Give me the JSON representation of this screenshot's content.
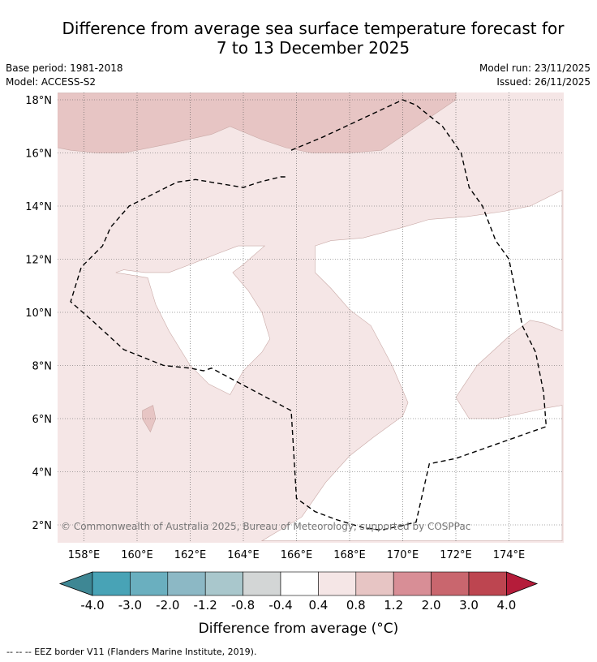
{
  "header": {
    "title_line1": "Difference from average sea surface temperature forecast for",
    "title_line2": "7 to 13 December 2025",
    "base_period": "Base period: 1981-2018",
    "model": "Model: ACCESS-S2",
    "model_run": "Model run: 23/11/2025",
    "issued": "Issued: 26/11/2025"
  },
  "chart_data": {
    "type": "heatmap",
    "title": "Difference from average sea surface temperature forecast for 7 to 13 December 2025",
    "x_ticks": [
      158,
      160,
      162,
      164,
      166,
      168,
      170,
      172,
      174
    ],
    "x_tick_labels": [
      "158°E",
      "160°E",
      "162°E",
      "164°E",
      "166°E",
      "168°E",
      "170°E",
      "172°E",
      "174°E"
    ],
    "y_ticks": [
      2,
      4,
      6,
      8,
      10,
      12,
      14,
      16,
      18
    ],
    "y_tick_labels": [
      "2°N",
      "4°N",
      "6°N",
      "8°N",
      "10°N",
      "12°N",
      "14°N",
      "16°N",
      "18°N"
    ],
    "xlim": [
      157.0,
      176.0
    ],
    "ylim": [
      1.4,
      18.25
    ],
    "grid": true,
    "regions": [
      {
        "name": "0.8 to 1.2 (northern band)",
        "bin": "0.8 to 1.2",
        "polygon": [
          [
            157,
            18.25
          ],
          [
            172,
            18.25
          ],
          [
            172,
            18.0
          ],
          [
            169.2,
            16.1
          ],
          [
            168.0,
            16.0
          ],
          [
            166.6,
            16.0
          ],
          [
            165.6,
            16.2
          ],
          [
            164.7,
            16.5
          ],
          [
            163.5,
            17.0
          ],
          [
            162.8,
            16.7
          ],
          [
            161.0,
            16.3
          ],
          [
            159.5,
            16.0
          ],
          [
            158.5,
            16.0
          ],
          [
            157.5,
            16.1
          ],
          [
            157,
            16.2
          ]
        ]
      },
      {
        "name": "0.8 to 1.2 (small patch)",
        "bin": "0.8 to 1.2",
        "polygon": [
          [
            160.2,
            6.3
          ],
          [
            160.6,
            6.5
          ],
          [
            160.7,
            6.0
          ],
          [
            160.5,
            5.5
          ],
          [
            160.2,
            6.0
          ]
        ]
      },
      {
        "name": "-0.4 to 0.4 (central neutral area)",
        "bin": "-0.4 to 0.4",
        "polygon": [
          [
            159.2,
            11.5
          ],
          [
            159.5,
            11.6
          ],
          [
            160.3,
            11.5
          ],
          [
            161.2,
            11.5
          ],
          [
            162.0,
            11.8
          ],
          [
            163.0,
            12.2
          ],
          [
            163.8,
            12.5
          ],
          [
            164.8,
            12.5
          ],
          [
            164.0,
            11.8
          ],
          [
            163.6,
            11.5
          ],
          [
            164.2,
            10.8
          ],
          [
            164.7,
            10.0
          ],
          [
            165.0,
            9.0
          ],
          [
            164.7,
            8.5
          ],
          [
            164.0,
            7.8
          ],
          [
            163.5,
            6.9
          ],
          [
            162.7,
            7.3
          ],
          [
            162.0,
            8.0
          ],
          [
            161.2,
            9.3
          ],
          [
            160.7,
            10.3
          ],
          [
            160.4,
            11.3
          ]
        ]
      },
      {
        "name": "-0.4 to 0.4 (eastern neutral area)",
        "bin": "-0.4 to 0.4",
        "polygon": [
          [
            166.7,
            12.5
          ],
          [
            167.3,
            12.7
          ],
          [
            168.5,
            12.8
          ],
          [
            170.0,
            13.2
          ],
          [
            171.0,
            13.5
          ],
          [
            172.4,
            13.6
          ],
          [
            173.8,
            13.8
          ],
          [
            174.8,
            14.0
          ],
          [
            176.0,
            14.6
          ],
          [
            176.0,
            9.3
          ],
          [
            175.3,
            9.6
          ],
          [
            174.8,
            9.7
          ],
          [
            174.0,
            9.1
          ],
          [
            172.8,
            8.0
          ],
          [
            172.0,
            6.8
          ],
          [
            172.5,
            6.0
          ],
          [
            173.5,
            6.0
          ],
          [
            174.5,
            6.2
          ],
          [
            175.4,
            6.4
          ],
          [
            176.0,
            6.5
          ],
          [
            176.0,
            1.4
          ],
          [
            164.7,
            1.4
          ],
          [
            166.2,
            2.3
          ],
          [
            167.1,
            3.6
          ],
          [
            168.0,
            4.6
          ],
          [
            168.9,
            5.3
          ],
          [
            170.0,
            6.1
          ],
          [
            170.2,
            6.6
          ],
          [
            169.6,
            8.0
          ],
          [
            168.8,
            9.5
          ],
          [
            168.0,
            10.1
          ],
          [
            167.3,
            10.9
          ],
          [
            166.7,
            11.5
          ]
        ]
      }
    ],
    "overlays": [
      {
        "name": "EEZ border",
        "style": "dashed",
        "points": [
          [
            165.8,
            16.1
          ],
          [
            167.0,
            16.6
          ],
          [
            168.5,
            17.3
          ],
          [
            170.0,
            18.0
          ],
          [
            170.5,
            17.8
          ],
          [
            171.5,
            17.0
          ],
          [
            172.2,
            16.0
          ],
          [
            172.5,
            14.7
          ],
          [
            173.0,
            14.0
          ],
          [
            173.5,
            12.7
          ],
          [
            174.0,
            12.0
          ],
          [
            174.5,
            9.5
          ],
          [
            175.0,
            8.5
          ],
          [
            175.3,
            7.0
          ],
          [
            175.4,
            5.7
          ],
          [
            172.0,
            4.5
          ],
          [
            171.0,
            4.3
          ],
          [
            170.5,
            2.1
          ],
          [
            169.2,
            1.8
          ],
          [
            168.5,
            1.9
          ],
          [
            167.5,
            2.2
          ],
          [
            166.7,
            2.5
          ],
          [
            166.0,
            3.0
          ],
          [
            165.8,
            6.3
          ],
          [
            162.8,
            7.9
          ],
          [
            162.5,
            7.8
          ],
          [
            162.0,
            7.9
          ],
          [
            161.0,
            8.0
          ],
          [
            159.5,
            8.6
          ],
          [
            158.3,
            9.7
          ],
          [
            157.5,
            10.4
          ],
          [
            157.9,
            11.7
          ],
          [
            158.7,
            12.5
          ],
          [
            159.0,
            13.2
          ],
          [
            159.7,
            14.0
          ],
          [
            161.5,
            14.9
          ],
          [
            162.2,
            15.0
          ],
          [
            164.0,
            14.7
          ],
          [
            164.6,
            14.9
          ],
          [
            165.4,
            15.1
          ],
          [
            165.6,
            15.1
          ]
        ]
      }
    ],
    "annotation": "© Commonwealth of Australia 2025, Bureau of Meteorology, supported by COSPPac",
    "colorbar": {
      "label": "Difference from average (°C)",
      "tick_labels": [
        "-4.0",
        "-3.0",
        "-2.0",
        "-1.2",
        "-0.8",
        "-0.4",
        "0.4",
        "0.8",
        "1.2",
        "2.0",
        "3.0",
        "4.0"
      ],
      "under_color": "#3e8794",
      "over_color": "#b51c3a",
      "bins": [
        {
          "range": "-4.0 to -3.0",
          "color": "#48a3b6"
        },
        {
          "range": "-3.0 to -2.0",
          "color": "#6aafbf"
        },
        {
          "range": "-2.0 to -1.2",
          "color": "#8cb8c5"
        },
        {
          "range": "-1.2 to -0.8",
          "color": "#a9c7cc"
        },
        {
          "range": "-0.8 to -0.4",
          "color": "#d3d6d6"
        },
        {
          "range": "-0.4 to 0.4",
          "color": "#ffffff"
        },
        {
          "range": "0.4 to 0.8",
          "color": "#f5e6e6"
        },
        {
          "range": "0.8 to 1.2",
          "color": "#e7c5c4"
        },
        {
          "range": "1.2 to 2.0",
          "color": "#d88e96"
        },
        {
          "range": "2.0 to 3.0",
          "color": "#c9666e"
        },
        {
          "range": "3.0 to 4.0",
          "color": "#bd4550"
        }
      ]
    },
    "background_bin": "0.4 to 0.8"
  },
  "footnote": "--  --  -- EEZ border V11 (Flanders Marine Institute, 2019)."
}
